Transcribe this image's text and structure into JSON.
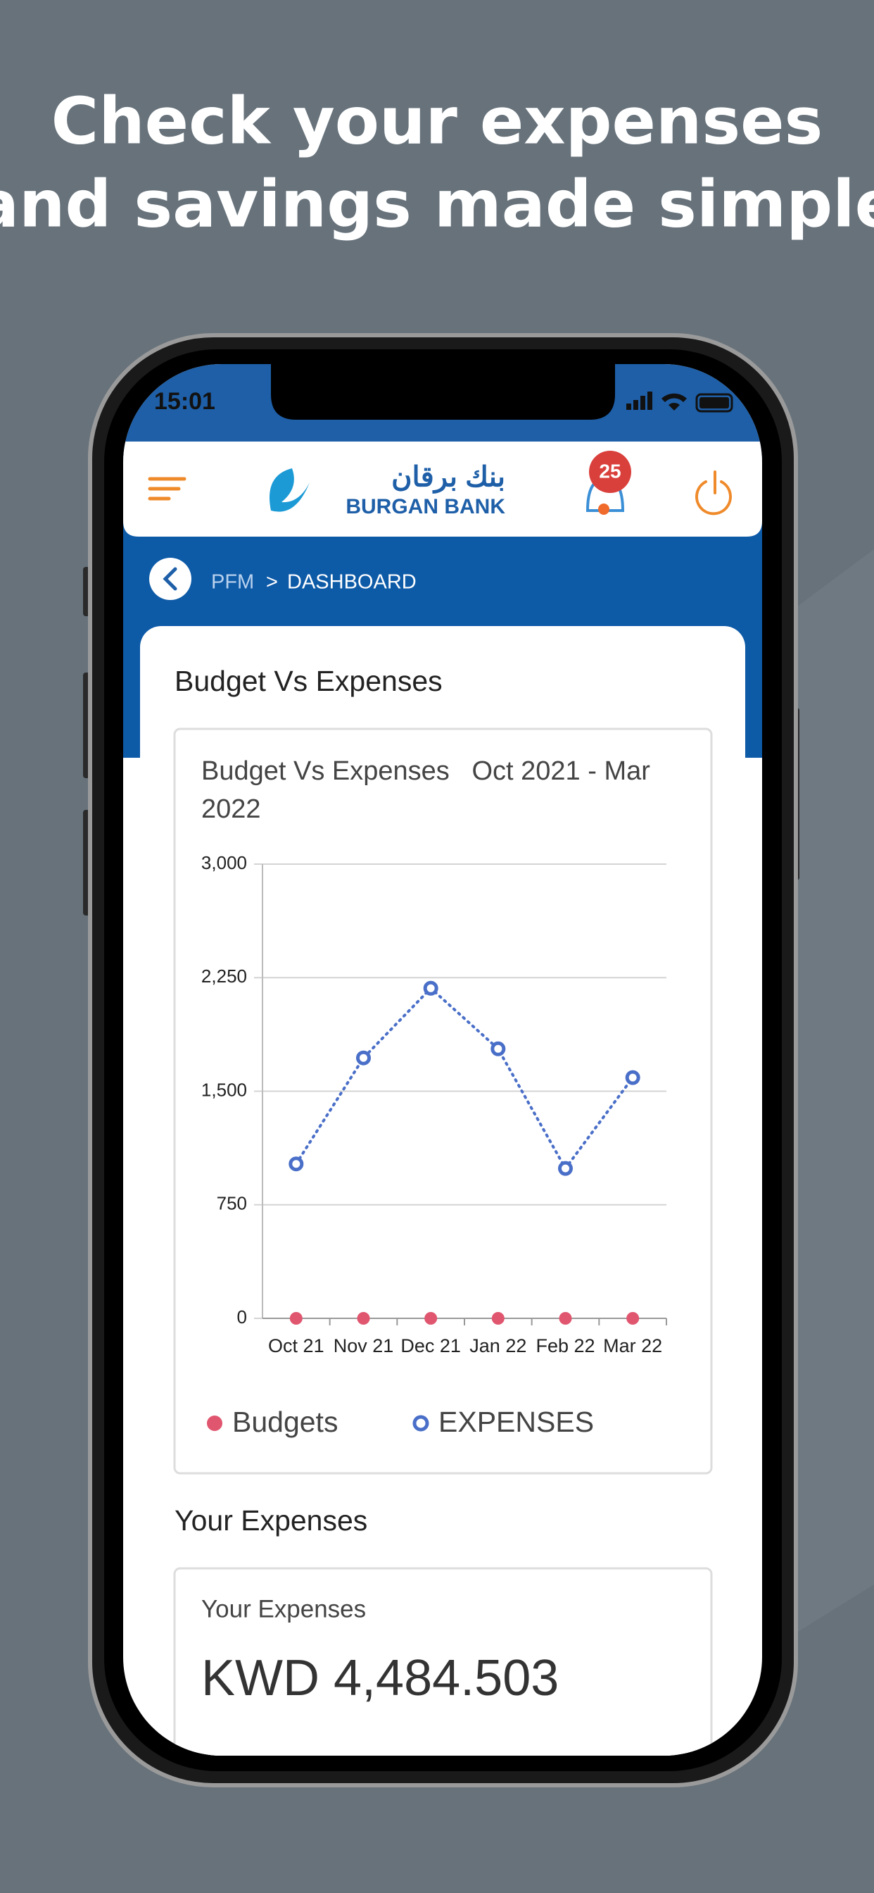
{
  "promo": {
    "headline": [
      "Check your expenses",
      "and savings made simple"
    ]
  },
  "status_bar": {
    "time": "15:01"
  },
  "header": {
    "logo_arabic": "بنك برقان",
    "logo_english": "BURGAN BANK",
    "notification_count": "25"
  },
  "breadcrumb": {
    "items": [
      "PFM",
      "DASHBOARD"
    ],
    "separator": ">"
  },
  "budget_card": {
    "heading": "Budget Vs Expenses"
  },
  "chart_data": {
    "type": "line",
    "title": "Budget Vs Expenses",
    "period": "Oct 2021 - Mar 2022",
    "categories": [
      "Oct 21",
      "Nov 21",
      "Dec 21",
      "Jan 22",
      "Feb 22",
      "Mar 22"
    ],
    "series": [
      {
        "name": "Budgets",
        "color": "#e0566f",
        "values": [
          0,
          0,
          0,
          0,
          0,
          0
        ]
      },
      {
        "name": "EXPENSES",
        "color": "#4a6fc8",
        "values": [
          1020,
          1720,
          2180,
          1780,
          990,
          1590
        ]
      }
    ],
    "ylim": [
      0,
      3000
    ],
    "yticks": [
      0,
      750,
      {
        "value": 1500,
        "label": "1,500"
      },
      {
        "value": 2250,
        "label": "2,250"
      },
      {
        "value": 3000,
        "label": "3,000"
      }
    ],
    "grid": true
  },
  "expenses": {
    "heading": "Your Expenses",
    "card_label": "Your Expenses",
    "amount": "KWD 4,484.503"
  }
}
